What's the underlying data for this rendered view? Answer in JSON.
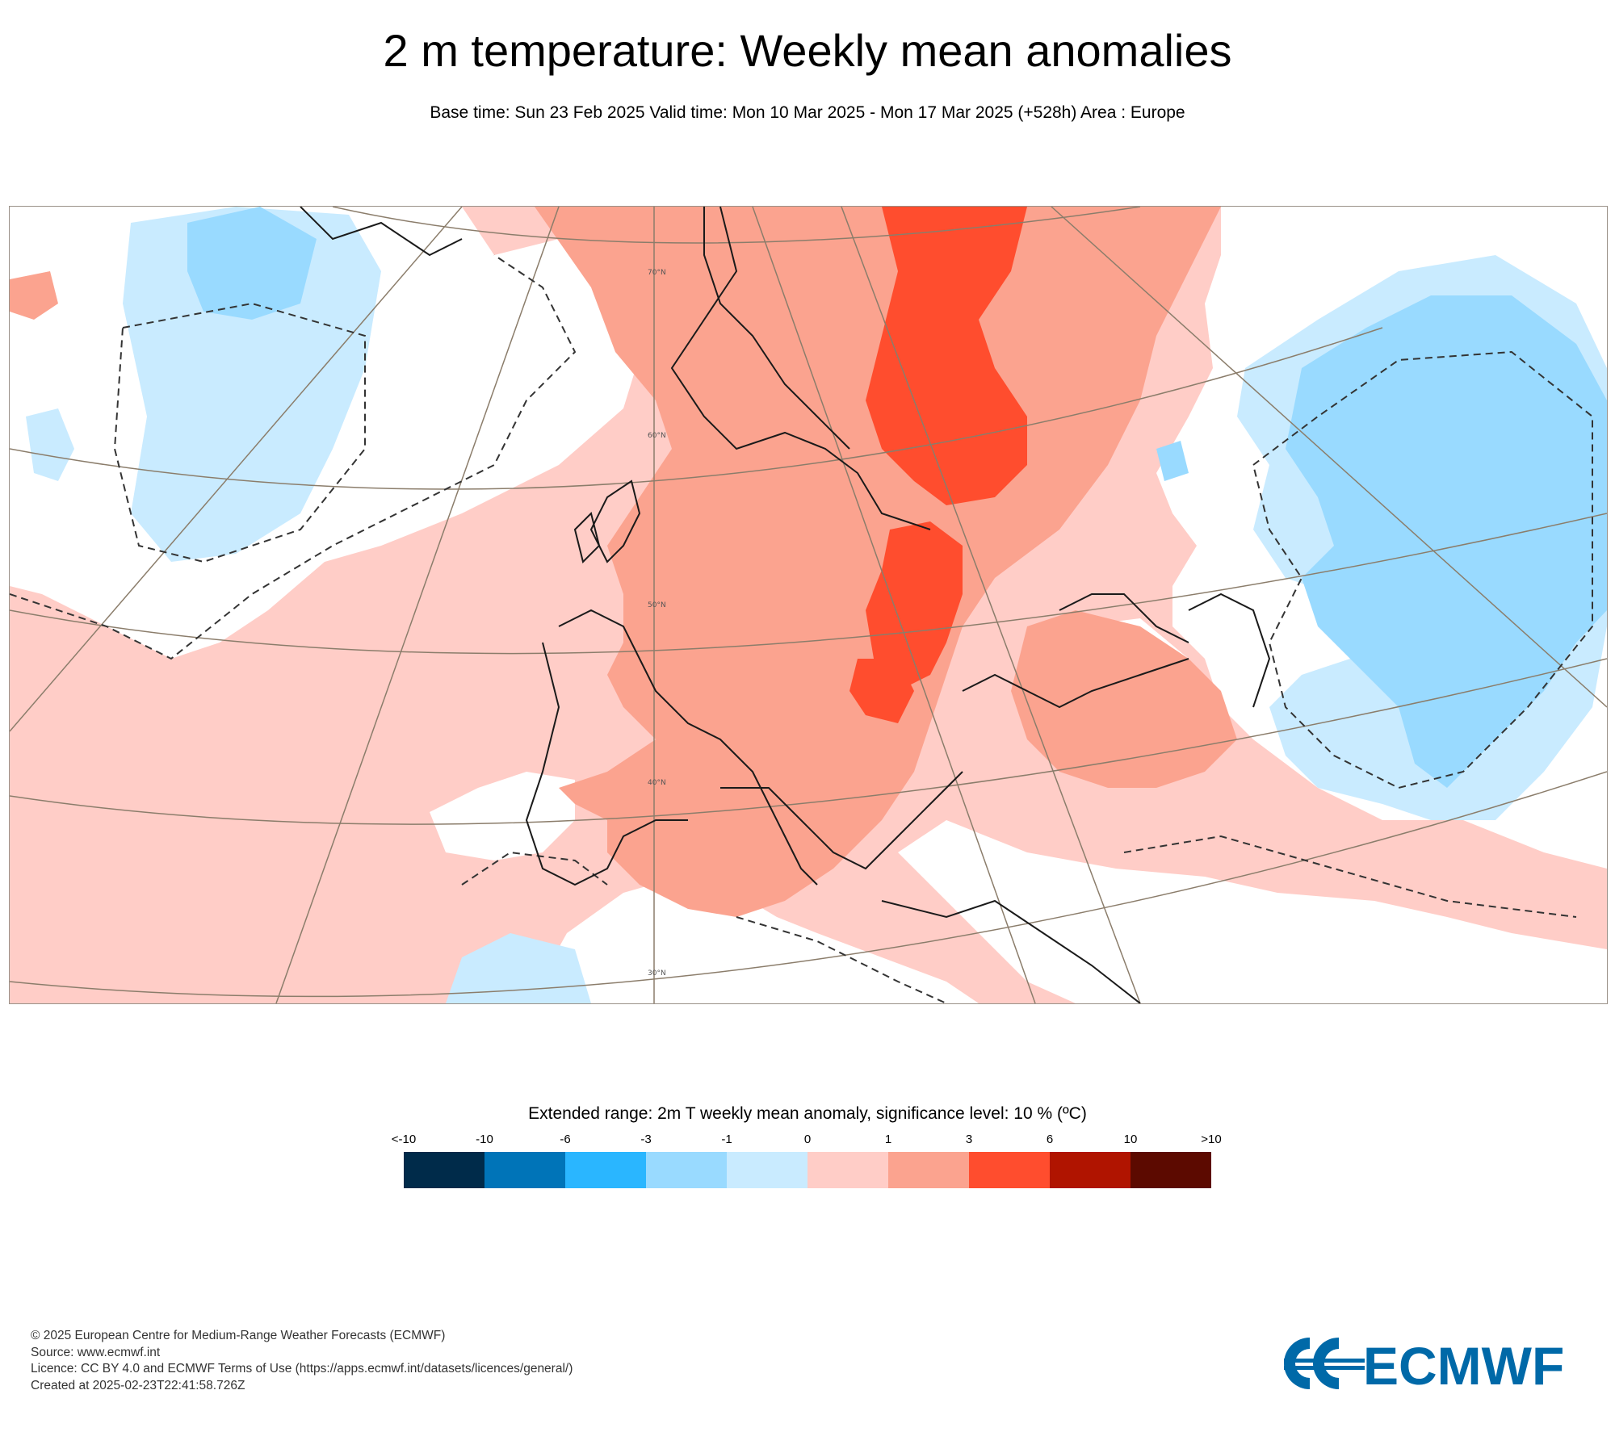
{
  "header": {
    "title": "2 m temperature: Weekly mean anomalies",
    "subtitle": "Base time: Sun 23 Feb 2025 Valid time: Mon 10 Mar 2025 - Mon 17 Mar 2025 (+528h) Area : Europe"
  },
  "map": {
    "latitude_labels": [
      "70°N",
      "60°N",
      "50°N",
      "40°N",
      "30°N"
    ],
    "colors": {
      "background": "#ffffff",
      "coastline": "#1a1a1a",
      "graticule": "#8b7d6b",
      "significance_contour": "#333333"
    }
  },
  "legend": {
    "title": "Extended range: 2m T weekly mean anomaly, significance level: 10 % (ºC)",
    "ticks": [
      "<-10",
      "-10",
      "-6",
      "-3",
      "-1",
      "0",
      "1",
      "3",
      "6",
      "10",
      ">10"
    ],
    "colors": [
      "#002b4a",
      "#0074b8",
      "#2ab6ff",
      "#99daff",
      "#c9ebff",
      "#ffcdc7",
      "#fba38f",
      "#ff4d2e",
      "#b01400",
      "#5c0a00"
    ]
  },
  "footer": {
    "line1": "© 2025 European Centre for Medium-Range Weather Forecasts (ECMWF)",
    "line2": "Source: www.ecmwf.int",
    "line3": "Licence: CC BY 4.0 and ECMWF Terms of Use (https://apps.ecmwf.int/datasets/licences/general/)",
    "line4": "Created at 2025-02-23T22:41:58.726Z"
  },
  "logo": {
    "text": "ECMWF",
    "icon": "ecmwf-logo-icon",
    "color": "#0069a8"
  }
}
